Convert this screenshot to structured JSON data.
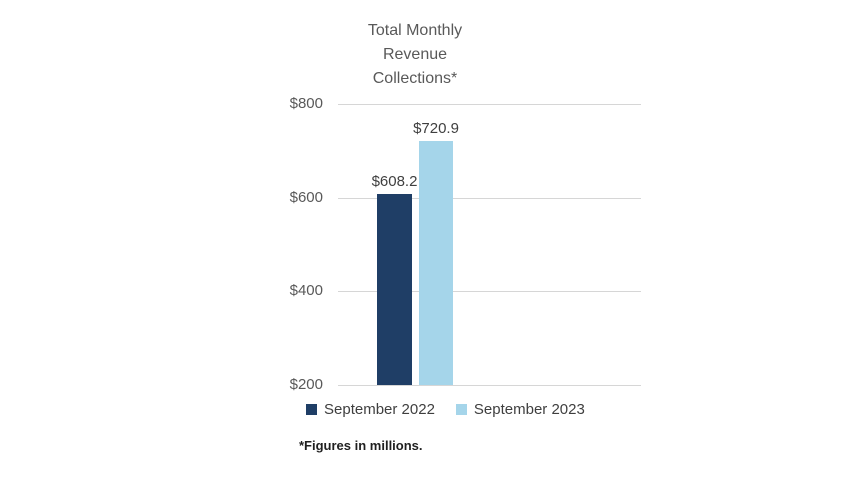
{
  "chart_data": {
    "type": "bar",
    "title": "Total Monthly\nRevenue\nCollections*",
    "categories": [
      "September 2022",
      "September 2023"
    ],
    "values": [
      608.2,
      720.9
    ],
    "value_labels": [
      "$608.2",
      "$720.9"
    ],
    "colors": [
      "#1f3e66",
      "#a5d5ea"
    ],
    "ylim": [
      200,
      800
    ],
    "y_ticks": [
      800,
      600,
      400,
      200
    ],
    "y_tick_labels": [
      "$800",
      "$600",
      "$400",
      "$200"
    ],
    "grid": true,
    "legend_position": "bottom",
    "footnote": "*Figures in millions."
  },
  "legend": {
    "items": [
      {
        "label": "September 2022",
        "color": "#1f3e66"
      },
      {
        "label": "September 2023",
        "color": "#a5d5ea"
      }
    ]
  }
}
